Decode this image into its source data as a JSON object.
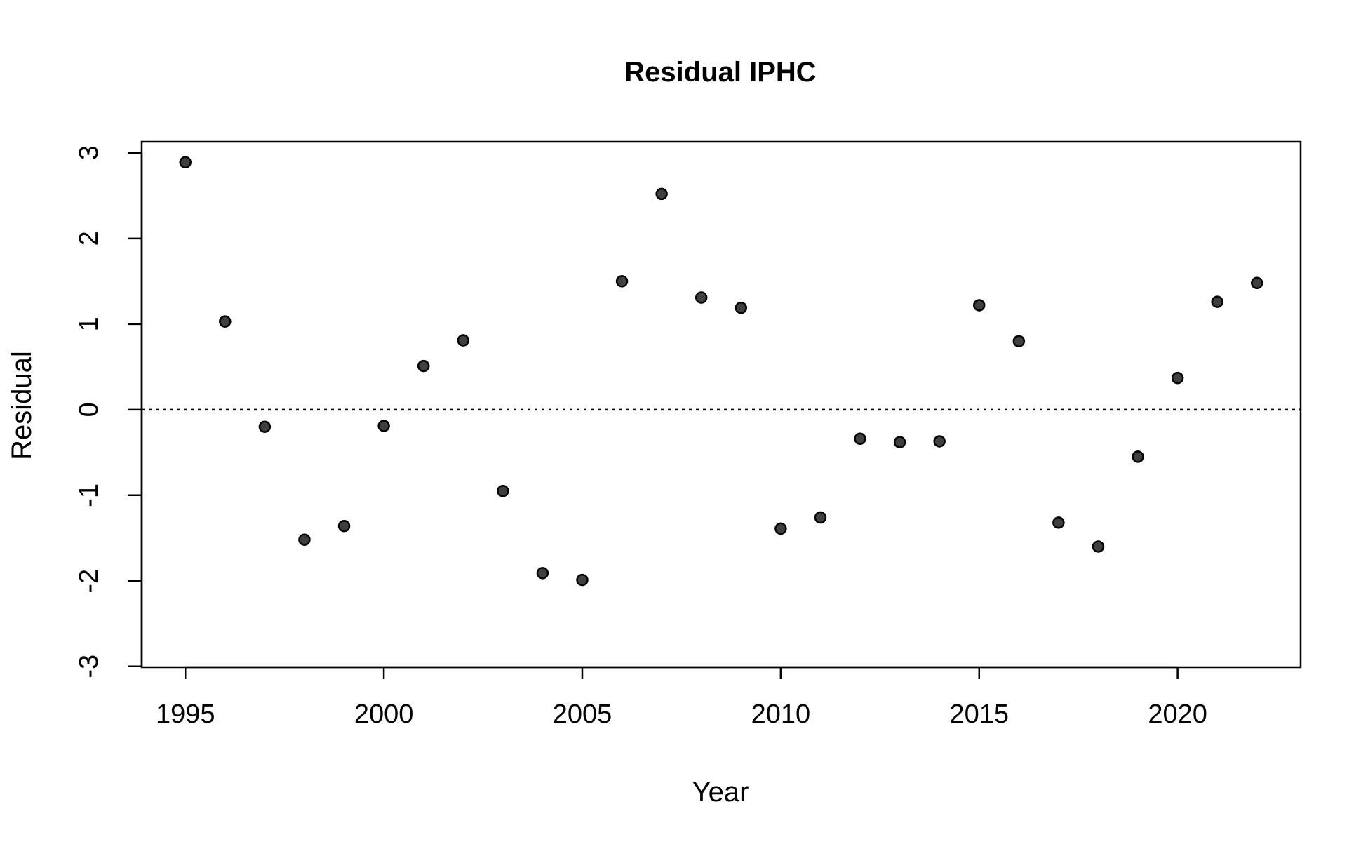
{
  "chart_data": {
    "type": "scatter",
    "title": "Residual IPHC",
    "xlabel": "Year",
    "ylabel": "Residual",
    "xlim": [
      1993.9,
      2023.1
    ],
    "ylim": [
      -3,
      3
    ],
    "x_ticks": [
      1995,
      2000,
      2005,
      2010,
      2015,
      2020
    ],
    "y_ticks": [
      -3,
      -2,
      -1,
      0,
      1,
      2,
      3
    ],
    "reference_line": {
      "y": 0,
      "style": "dotted"
    },
    "grid": false,
    "point_color": "#3f3f3f",
    "series": [
      {
        "x": [
          1995,
          1996,
          1997,
          1998,
          1999,
          2000,
          2001,
          2002,
          2003,
          2004,
          2005,
          2006,
          2007,
          2008,
          2009,
          2010,
          2011,
          2012,
          2013,
          2014,
          2015,
          2016,
          2017,
          2018,
          2019,
          2020,
          2021,
          2022
        ],
        "y": [
          2.89,
          1.03,
          -0.2,
          -1.52,
          -1.36,
          -0.19,
          0.51,
          0.81,
          -0.95,
          -1.91,
          -1.99,
          1.5,
          2.52,
          1.31,
          1.19,
          -1.39,
          -1.26,
          -0.34,
          -0.38,
          -0.37,
          1.22,
          0.8,
          -1.32,
          -1.6,
          -0.55,
          0.37,
          1.26,
          1.48
        ]
      }
    ]
  }
}
